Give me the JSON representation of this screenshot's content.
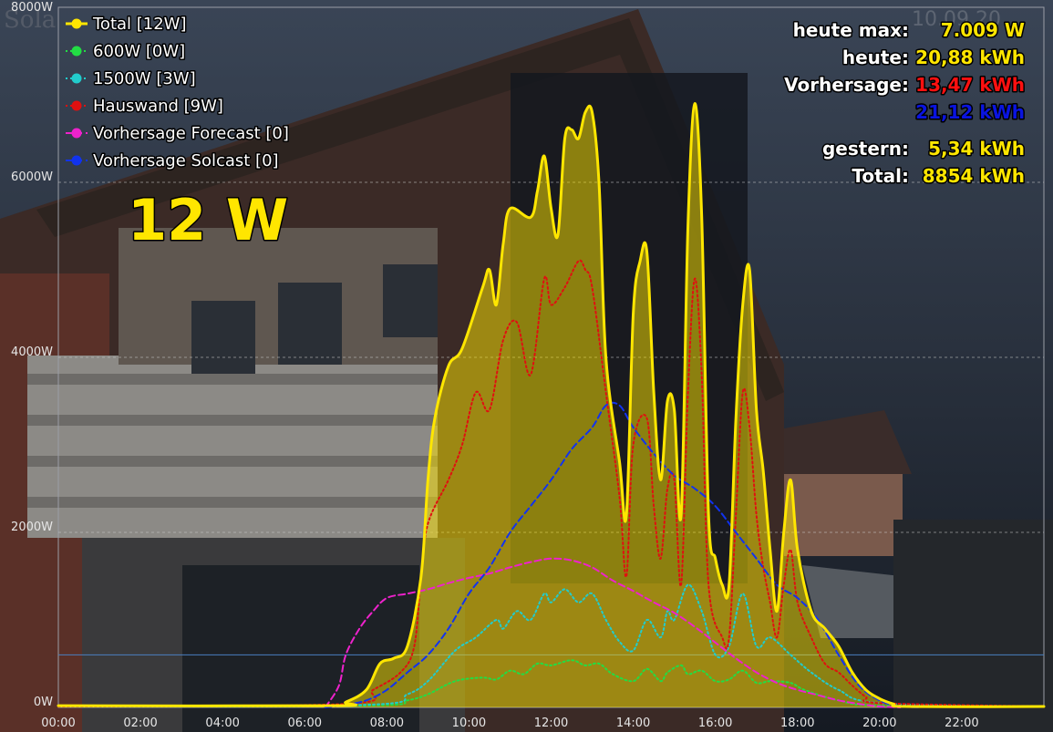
{
  "colors": {
    "total": "#ffe600",
    "w600": "#22dd44",
    "w1500": "#22cccc",
    "hauswand": "#e01010",
    "forecast": "#ee22cc",
    "solcast": "#1133ee",
    "stat_label": "#ffffff",
    "stat_yellow": "#ffe600",
    "stat_red": "#ff1010",
    "stat_blue": "#0a14e0"
  },
  "current_power": "12 W",
  "watermark": "Sola",
  "date_watermark": "10.09.20",
  "stats": [
    {
      "label": "heute max:",
      "value": "7.009 W",
      "color": "stat_yellow"
    },
    {
      "label": "heute:",
      "value": "20,88 kWh",
      "color": "stat_yellow"
    },
    {
      "label": "Vorhersage:",
      "value": "13,47 kWh",
      "color": "stat_red"
    },
    {
      "label": "",
      "value": "21,12 kWh",
      "color": "stat_blue"
    },
    {
      "label": "gestern:",
      "value": "5,34 kWh",
      "color": "stat_yellow"
    },
    {
      "label": "Total:",
      "value": "8854 kWh",
      "color": "stat_yellow"
    }
  ],
  "chart_data": {
    "type": "line",
    "ylim": [
      0,
      8000
    ],
    "xlim": [
      "00:00",
      "24:00"
    ],
    "x_ticks": [
      "00:00",
      "02:00",
      "04:00",
      "06:00",
      "08:00",
      "10:00",
      "12:00",
      "14:00",
      "16:00",
      "18:00",
      "20:00",
      "22:00"
    ],
    "y_ticks": [
      "0W",
      "2000W",
      "4000W",
      "6000W",
      "8000W"
    ],
    "grid": true,
    "reference_line_y": 600,
    "legend_position": "top-left",
    "series": [
      {
        "name": "Total [12W]",
        "key": "total",
        "style": "solid",
        "fill": true,
        "points": [
          [
            "00:00",
            20
          ],
          [
            "06:40",
            20
          ],
          [
            "07:00",
            60
          ],
          [
            "07:30",
            200
          ],
          [
            "07:50",
            500
          ],
          [
            "08:10",
            560
          ],
          [
            "08:30",
            700
          ],
          [
            "08:50",
            1500
          ],
          [
            "09:00",
            2600
          ],
          [
            "09:10",
            3300
          ],
          [
            "09:30",
            3900
          ],
          [
            "09:50",
            4100
          ],
          [
            "10:20",
            4800
          ],
          [
            "10:30",
            5000
          ],
          [
            "10:40",
            4600
          ],
          [
            "10:50",
            5300
          ],
          [
            "11:00",
            5700
          ],
          [
            "11:30",
            5600
          ],
          [
            "11:40",
            5900
          ],
          [
            "11:50",
            6300
          ],
          [
            "12:00",
            5700
          ],
          [
            "12:10",
            5400
          ],
          [
            "12:20",
            6500
          ],
          [
            "12:30",
            6600
          ],
          [
            "12:40",
            6500
          ],
          [
            "12:50",
            6800
          ],
          [
            "13:00",
            6800
          ],
          [
            "13:10",
            6000
          ],
          [
            "13:20",
            4000
          ],
          [
            "13:40",
            2800
          ],
          [
            "13:50",
            2200
          ],
          [
            "14:00",
            4500
          ],
          [
            "14:10",
            5100
          ],
          [
            "14:20",
            5200
          ],
          [
            "14:30",
            3600
          ],
          [
            "14:40",
            2600
          ],
          [
            "14:50",
            3500
          ],
          [
            "15:00",
            3400
          ],
          [
            "15:10",
            2200
          ],
          [
            "15:20",
            5500
          ],
          [
            "15:30",
            6900
          ],
          [
            "15:40",
            5600
          ],
          [
            "15:50",
            2200
          ],
          [
            "16:00",
            1700
          ],
          [
            "16:10",
            1400
          ],
          [
            "16:20",
            1400
          ],
          [
            "16:30",
            3300
          ],
          [
            "16:40",
            4600
          ],
          [
            "16:50",
            5000
          ],
          [
            "17:00",
            3400
          ],
          [
            "17:10",
            2700
          ],
          [
            "17:20",
            1800
          ],
          [
            "17:30",
            1100
          ],
          [
            "17:40",
            2000
          ],
          [
            "17:50",
            2600
          ],
          [
            "18:00",
            1800
          ],
          [
            "18:20",
            1100
          ],
          [
            "18:40",
            900
          ],
          [
            "19:00",
            700
          ],
          [
            "19:20",
            400
          ],
          [
            "19:40",
            200
          ],
          [
            "20:00",
            100
          ],
          [
            "20:20",
            40
          ],
          [
            "20:40",
            10
          ],
          [
            "24:00",
            10
          ]
        ]
      },
      {
        "name": "600W [0W]",
        "key": "w600",
        "style": "dotted",
        "fill": false,
        "points": [
          [
            "00:00",
            10
          ],
          [
            "07:30",
            20
          ],
          [
            "08:30",
            80
          ],
          [
            "09:00",
            150
          ],
          [
            "09:40",
            300
          ],
          [
            "10:20",
            340
          ],
          [
            "10:40",
            320
          ],
          [
            "11:00",
            420
          ],
          [
            "11:20",
            380
          ],
          [
            "11:40",
            500
          ],
          [
            "12:00",
            480
          ],
          [
            "12:30",
            540
          ],
          [
            "12:50",
            480
          ],
          [
            "13:10",
            500
          ],
          [
            "13:30",
            380
          ],
          [
            "14:00",
            300
          ],
          [
            "14:20",
            440
          ],
          [
            "14:40",
            300
          ],
          [
            "14:50",
            400
          ],
          [
            "15:10",
            480
          ],
          [
            "15:20",
            380
          ],
          [
            "15:40",
            420
          ],
          [
            "16:00",
            300
          ],
          [
            "16:20",
            320
          ],
          [
            "16:40",
            420
          ],
          [
            "17:00",
            280
          ],
          [
            "17:20",
            300
          ],
          [
            "17:50",
            280
          ],
          [
            "18:10",
            200
          ],
          [
            "19:00",
            80
          ],
          [
            "20:00",
            20
          ],
          [
            "24:00",
            10
          ]
        ]
      },
      {
        "name": "1500W [3W]",
        "key": "w1500",
        "style": "dotted",
        "fill": false,
        "points": [
          [
            "00:00",
            10
          ],
          [
            "07:30",
            30
          ],
          [
            "08:30",
            150
          ],
          [
            "09:00",
            300
          ],
          [
            "09:40",
            650
          ],
          [
            "10:10",
            800
          ],
          [
            "10:40",
            1000
          ],
          [
            "10:50",
            900
          ],
          [
            "11:10",
            1100
          ],
          [
            "11:30",
            1000
          ],
          [
            "11:50",
            1300
          ],
          [
            "12:00",
            1200
          ],
          [
            "12:20",
            1350
          ],
          [
            "12:40",
            1200
          ],
          [
            "13:00",
            1300
          ],
          [
            "13:20",
            1000
          ],
          [
            "13:40",
            750
          ],
          [
            "14:00",
            650
          ],
          [
            "14:20",
            1000
          ],
          [
            "14:40",
            800
          ],
          [
            "14:50",
            1100
          ],
          [
            "15:00",
            1000
          ],
          [
            "15:20",
            1400
          ],
          [
            "15:40",
            1100
          ],
          [
            "16:00",
            600
          ],
          [
            "16:20",
            700
          ],
          [
            "16:40",
            1300
          ],
          [
            "17:00",
            700
          ],
          [
            "17:20",
            800
          ],
          [
            "17:50",
            600
          ],
          [
            "18:20",
            400
          ],
          [
            "19:00",
            200
          ],
          [
            "20:00",
            50
          ],
          [
            "24:00",
            10
          ]
        ]
      },
      {
        "name": "Hauswand [9W]",
        "key": "hauswand",
        "style": "dotted",
        "fill": false,
        "points": [
          [
            "00:00",
            10
          ],
          [
            "07:00",
            40
          ],
          [
            "07:40",
            200
          ],
          [
            "08:20",
            400
          ],
          [
            "08:40",
            700
          ],
          [
            "08:50",
            1500
          ],
          [
            "09:00",
            2100
          ],
          [
            "09:30",
            2600
          ],
          [
            "09:50",
            3000
          ],
          [
            "10:10",
            3600
          ],
          [
            "10:30",
            3400
          ],
          [
            "10:50",
            4200
          ],
          [
            "11:10",
            4400
          ],
          [
            "11:30",
            3800
          ],
          [
            "11:50",
            4900
          ],
          [
            "12:00",
            4600
          ],
          [
            "12:20",
            4800
          ],
          [
            "12:40",
            5100
          ],
          [
            "12:50",
            5000
          ],
          [
            "13:00",
            4800
          ],
          [
            "13:20",
            3600
          ],
          [
            "13:40",
            2400
          ],
          [
            "13:50",
            1500
          ],
          [
            "14:00",
            3000
          ],
          [
            "14:20",
            3300
          ],
          [
            "14:30",
            2300
          ],
          [
            "14:40",
            1700
          ],
          [
            "14:50",
            2500
          ],
          [
            "15:00",
            2600
          ],
          [
            "15:10",
            1400
          ],
          [
            "15:20",
            3600
          ],
          [
            "15:30",
            4900
          ],
          [
            "15:40",
            3800
          ],
          [
            "15:50",
            1400
          ],
          [
            "16:10",
            800
          ],
          [
            "16:20",
            800
          ],
          [
            "16:30",
            2200
          ],
          [
            "16:40",
            3600
          ],
          [
            "16:50",
            3200
          ],
          [
            "17:00",
            2200
          ],
          [
            "17:10",
            1600
          ],
          [
            "17:20",
            1200
          ],
          [
            "17:30",
            800
          ],
          [
            "17:40",
            1400
          ],
          [
            "17:50",
            1800
          ],
          [
            "18:00",
            1200
          ],
          [
            "18:20",
            800
          ],
          [
            "18:40",
            500
          ],
          [
            "19:00",
            400
          ],
          [
            "19:20",
            250
          ],
          [
            "19:40",
            120
          ],
          [
            "20:00",
            50
          ],
          [
            "24:00",
            10
          ]
        ]
      },
      {
        "name": "Vorhersage Forecast [0]",
        "key": "forecast",
        "style": "dashed",
        "fill": false,
        "points": [
          [
            "06:30",
            0
          ],
          [
            "06:50",
            250
          ],
          [
            "07:00",
            600
          ],
          [
            "07:20",
            900
          ],
          [
            "07:40",
            1100
          ],
          [
            "08:00",
            1250
          ],
          [
            "08:30",
            1300
          ],
          [
            "09:00",
            1350
          ],
          [
            "09:30",
            1420
          ],
          [
            "10:00",
            1480
          ],
          [
            "10:30",
            1530
          ],
          [
            "11:00",
            1600
          ],
          [
            "11:30",
            1660
          ],
          [
            "12:00",
            1700
          ],
          [
            "12:30",
            1680
          ],
          [
            "13:00",
            1600
          ],
          [
            "13:30",
            1450
          ],
          [
            "14:00",
            1330
          ],
          [
            "14:30",
            1200
          ],
          [
            "15:00",
            1080
          ],
          [
            "15:30",
            920
          ],
          [
            "16:00",
            740
          ],
          [
            "16:30",
            560
          ],
          [
            "17:00",
            400
          ],
          [
            "17:30",
            280
          ],
          [
            "18:00",
            200
          ],
          [
            "18:30",
            140
          ],
          [
            "19:00",
            80
          ],
          [
            "19:30",
            40
          ],
          [
            "20:00",
            10
          ],
          [
            "20:30",
            0
          ]
        ]
      },
      {
        "name": "Vorhersage Solcast [0]",
        "key": "solcast",
        "style": "dashed",
        "fill": false,
        "points": [
          [
            "06:30",
            0
          ],
          [
            "07:00",
            30
          ],
          [
            "07:30",
            80
          ],
          [
            "08:00",
            200
          ],
          [
            "08:30",
            400
          ],
          [
            "09:00",
            600
          ],
          [
            "09:30",
            900
          ],
          [
            "10:00",
            1300
          ],
          [
            "10:30",
            1600
          ],
          [
            "11:00",
            2000
          ],
          [
            "11:30",
            2300
          ],
          [
            "12:00",
            2600
          ],
          [
            "12:30",
            2950
          ],
          [
            "13:00",
            3200
          ],
          [
            "13:20",
            3450
          ],
          [
            "13:40",
            3450
          ],
          [
            "14:00",
            3200
          ],
          [
            "14:30",
            2900
          ],
          [
            "15:00",
            2650
          ],
          [
            "15:30",
            2500
          ],
          [
            "16:00",
            2300
          ],
          [
            "16:30",
            2000
          ],
          [
            "17:00",
            1700
          ],
          [
            "17:30",
            1400
          ],
          [
            "18:00",
            1250
          ],
          [
            "18:30",
            1000
          ],
          [
            "19:00",
            600
          ],
          [
            "19:30",
            250
          ],
          [
            "20:00",
            80
          ],
          [
            "20:30",
            10
          ],
          [
            "21:00",
            0
          ]
        ]
      }
    ]
  }
}
